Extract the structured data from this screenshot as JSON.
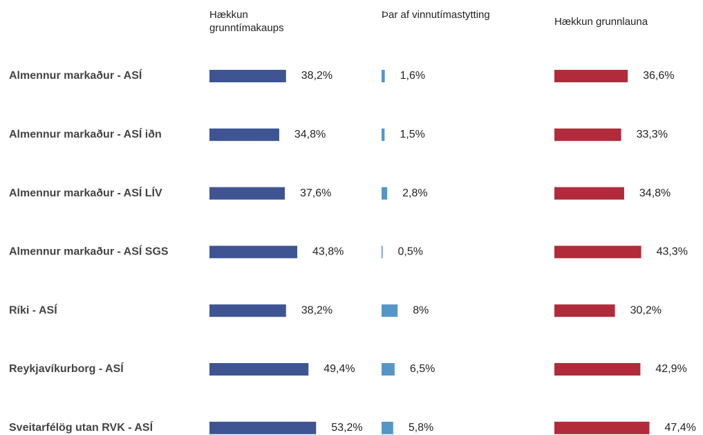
{
  "chart_data": {
    "type": "bar",
    "categories": [
      "Almennur markaður - ASÍ",
      "Almennur markaður - ASÍ iðn",
      "Almennur markaður - ASÍ LÍV",
      "Almennur markaður - ASÍ SGS",
      "Ríki - ASÍ",
      "Reykjavíkurborg - ASÍ",
      "Sveitarfélög utan RVK - ASÍ"
    ],
    "series": [
      {
        "name": "Hækkun grunntímakaups",
        "color": "#3f5493",
        "values": [
          38.2,
          34.8,
          37.6,
          43.8,
          38.2,
          49.4,
          53.2
        ],
        "value_labels": [
          "38,2%",
          "34,8%",
          "37,6%",
          "43,8%",
          "38,2%",
          "49,4%",
          "53,2%"
        ]
      },
      {
        "name": "Þar af vinnutímastytting",
        "color": "#5596c6",
        "values": [
          1.6,
          1.5,
          2.8,
          0.5,
          8,
          6.5,
          5.8
        ],
        "value_labels": [
          "1,6%",
          "1,5%",
          "2,8%",
          "0,5%",
          "8%",
          "6,5%",
          "5,8%"
        ]
      },
      {
        "name": "Hækkun grunnlauna",
        "color": "#b12b3b",
        "values": [
          36.6,
          33.3,
          34.8,
          43.3,
          30.2,
          42.9,
          47.4
        ],
        "value_labels": [
          "36,6%",
          "33,3%",
          "34,8%",
          "43,3%",
          "30,2%",
          "42,9%",
          "47,4%"
        ]
      }
    ]
  }
}
